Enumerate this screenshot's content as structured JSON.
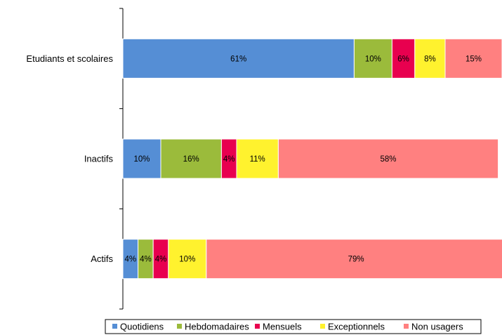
{
  "chart_data": {
    "type": "bar",
    "orientation": "horizontal",
    "stacked": true,
    "title": "",
    "xlabel": "",
    "ylabel": "",
    "xlim": [
      0,
      100
    ],
    "categories": [
      "Etudiants et scolaires",
      "Inactifs",
      "Actifs"
    ],
    "series": [
      {
        "name": "Quotidiens",
        "color": "#558ED5",
        "values": [
          61,
          10,
          4
        ],
        "labels": [
          "61%",
          "10%",
          "4%"
        ]
      },
      {
        "name": "Hebdomadaires",
        "color": "#9BBB3B",
        "values": [
          10,
          16,
          4
        ],
        "labels": [
          "10%",
          "16%",
          "4%"
        ]
      },
      {
        "name": "Mensuels",
        "color": "#E8004F",
        "values": [
          6,
          4,
          4
        ],
        "labels": [
          "6%",
          "4%",
          "4%"
        ]
      },
      {
        "name": "Exceptionnels",
        "color": "#FFF22E",
        "values": [
          8,
          11,
          10
        ],
        "labels": [
          "8%",
          "11%",
          "10%"
        ]
      },
      {
        "name": "Non usagers",
        "color": "#FF8080",
        "values": [
          15,
          58,
          79
        ],
        "labels": [
          "15%",
          "58%",
          "79%"
        ]
      }
    ],
    "grid": false,
    "legend_position": "bottom"
  }
}
